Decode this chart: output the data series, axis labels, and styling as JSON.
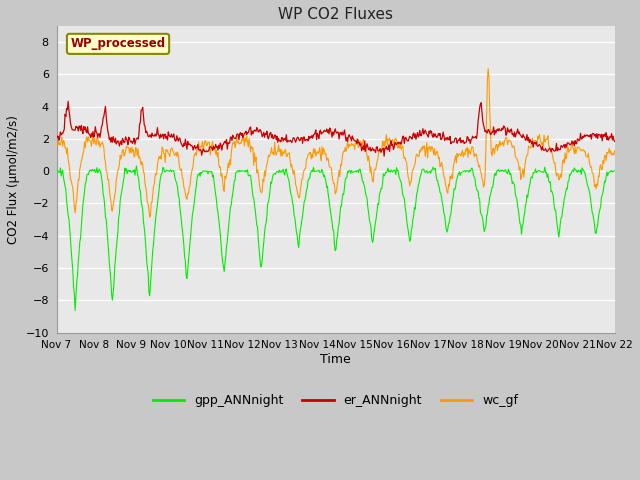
{
  "title": "WP CO2 Fluxes",
  "xlabel": "Time",
  "ylabel": "CO2 Flux (μmol/m2/s)",
  "ylim": [
    -10,
    9
  ],
  "yticks": [
    -10,
    -8,
    -6,
    -4,
    -2,
    0,
    2,
    4,
    6,
    8
  ],
  "annotation_text": "WP_processed",
  "annotation_color": "#990000",
  "annotation_bg": "#ffffcc",
  "annotation_border": "#888800",
  "fig_bg": "#c8c8c8",
  "plot_bg": "#e8e8e8",
  "grid_color": "#ffffff",
  "line_colors": {
    "gpp": "#00ee00",
    "er": "#cc0000",
    "wc": "#ff9900"
  },
  "legend_labels": [
    "gpp_ANNnight",
    "er_ANNnight",
    "wc_gf"
  ],
  "xtick_labels": [
    "Nov 7",
    "Nov 8",
    "Nov 9",
    "Nov 10",
    "Nov 11",
    "Nov 12",
    "Nov 13",
    "Nov 14",
    "Nov 15",
    "Nov 16",
    "Nov 17",
    "Nov 18",
    "Nov 19",
    "Nov 20",
    "Nov 21",
    "Nov 22"
  ]
}
